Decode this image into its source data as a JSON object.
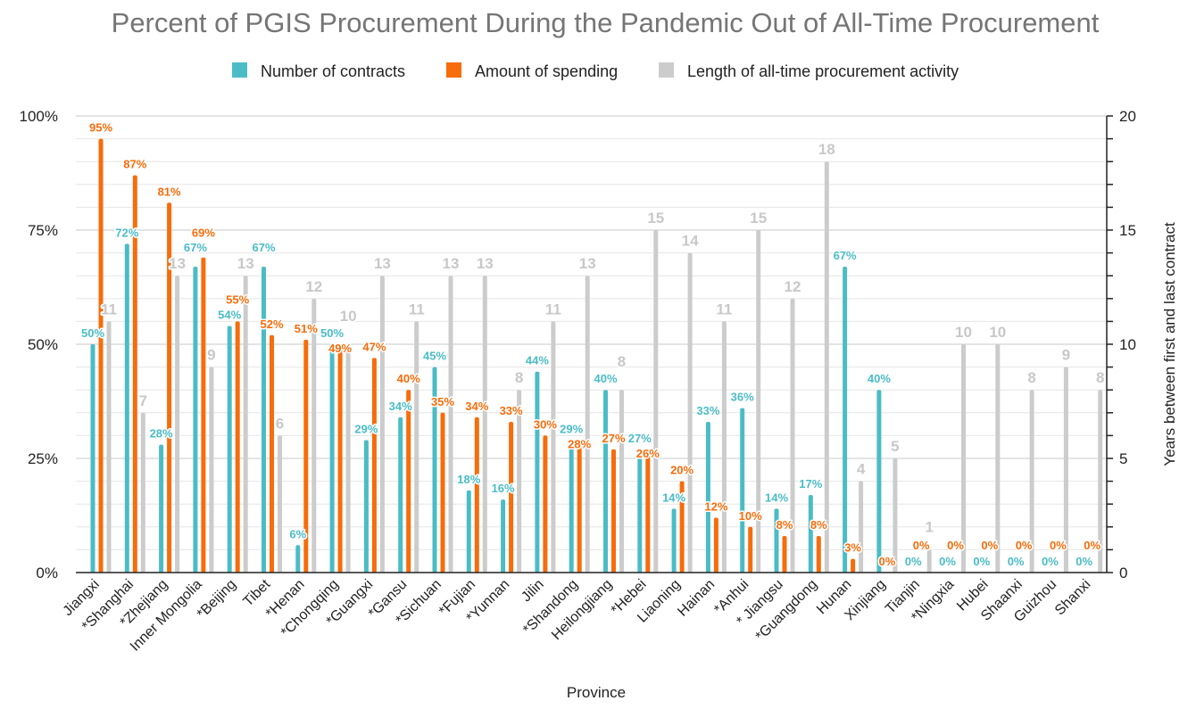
{
  "chart_data": {
    "type": "bar",
    "title": "Percent of PGIS Procurement During the Pandemic Out of All-Time Procurement",
    "xlabel": "Province",
    "ylabel": "",
    "y2label": "Years between first and last contract",
    "ylim": [
      0,
      100
    ],
    "y2lim": [
      0,
      20
    ],
    "yticks": [
      "0%",
      "25%",
      "50%",
      "75%",
      "100%"
    ],
    "y2ticks": [
      "0",
      "5",
      "10",
      "15",
      "20"
    ],
    "grid": true,
    "legend_position": "top-center",
    "categories": [
      "Jiangxi",
      "*Shanghai",
      "*Zhejiang",
      "Inner Mongolia",
      "*Beijing",
      "Tibet",
      "*Henan",
      "*Chongqing",
      "*Guangxi",
      "*Gansu",
      "*Sichuan",
      "*Fujian",
      "*Yunnan",
      "Jilin",
      "*Shandong",
      "Heilongjiang",
      "*Hebei",
      "Liaoning",
      "Hainan",
      "*Anhui",
      "* Jiangsu",
      "*Guangdong",
      "Hunan",
      "Xinjiang",
      "Tianjin",
      "*Ningxia",
      "Hubei",
      "Shaanxi",
      "Guizhou",
      "Shanxi"
    ],
    "series": [
      {
        "name": "Number of contracts",
        "axis": "left",
        "unit": "%",
        "color": "#4bbcc6",
        "values": [
          50,
          72,
          28,
          67,
          54,
          67,
          6,
          50,
          29,
          34,
          45,
          18,
          16,
          44,
          29,
          40,
          27,
          14,
          33,
          36,
          14,
          17,
          67,
          40,
          0,
          0,
          0,
          0,
          0,
          0
        ]
      },
      {
        "name": "Amount of spending",
        "axis": "left",
        "unit": "%",
        "color": "#f76c0b",
        "values": [
          95,
          87,
          81,
          69,
          55,
          52,
          51,
          49,
          47,
          40,
          35,
          34,
          33,
          30,
          28,
          27,
          26,
          20,
          12,
          10,
          8,
          8,
          3,
          0,
          0,
          0,
          0,
          0,
          0,
          0
        ]
      },
      {
        "name": "Length of all-time procurement activity",
        "axis": "right",
        "unit": "",
        "color": "#cccccc",
        "values": [
          11,
          7,
          13,
          9,
          13,
          6,
          12,
          10,
          13,
          11,
          13,
          13,
          8,
          11,
          13,
          8,
          15,
          14,
          11,
          15,
          12,
          18,
          4,
          5,
          1,
          10,
          10,
          8,
          9,
          8
        ]
      }
    ]
  }
}
